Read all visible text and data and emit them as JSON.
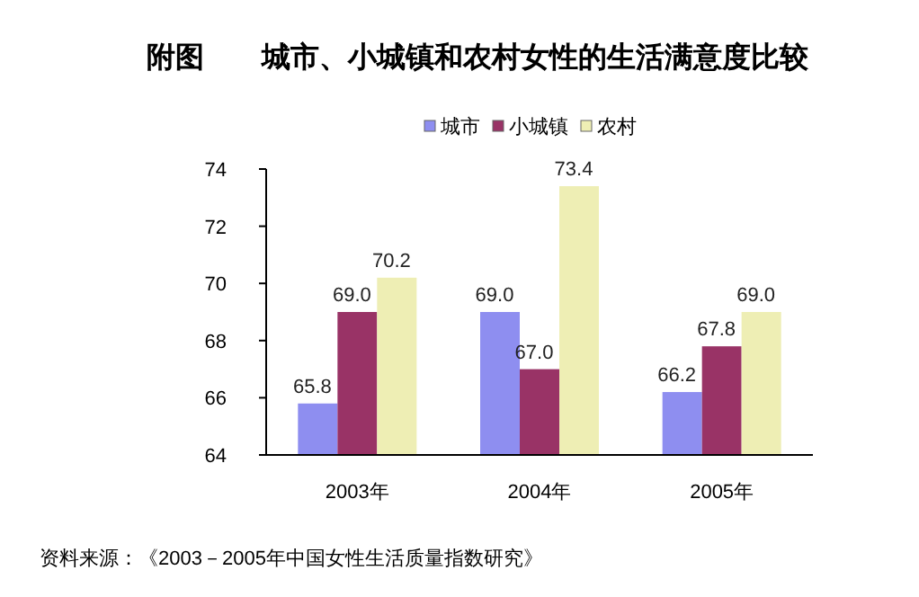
{
  "chart_data": {
    "type": "bar",
    "title": "附图　　城市、小城镇和农村女性的生活满意度比较",
    "categories": [
      "2003年",
      "2004年",
      "2005年"
    ],
    "series": [
      {
        "name": "城市",
        "color": "#8e8ef0",
        "values": [
          65.8,
          69.0,
          66.2
        ],
        "value_labels": [
          "65.8",
          "69.0",
          "66.2"
        ]
      },
      {
        "name": "小城镇",
        "color": "#993366",
        "values": [
          69.0,
          67.0,
          67.8
        ],
        "value_labels": [
          "69.0",
          "67.0",
          "67.8"
        ]
      },
      {
        "name": "农村",
        "color": "#eeeeb4",
        "values": [
          70.2,
          73.4,
          69.0
        ],
        "value_labels": [
          "70.2",
          "73.4",
          "69.0"
        ]
      }
    ],
    "ylim": [
      64,
      74
    ],
    "yticks": [
      64,
      66,
      68,
      70,
      72,
      74
    ],
    "grid": false,
    "legend": "top",
    "annotations": [
      "资料来源：《2003－2005年中国女性生活质量指数研究》"
    ]
  }
}
